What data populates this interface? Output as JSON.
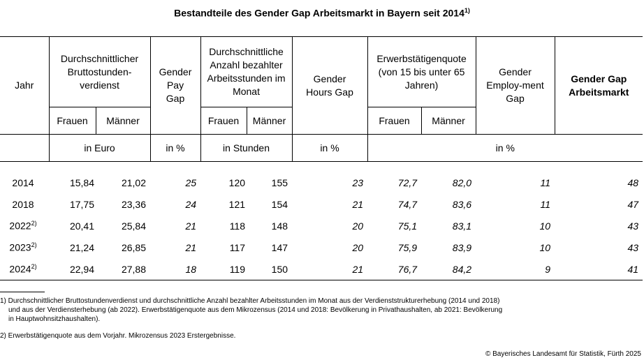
{
  "title": "Bestandteile des Gender Gap Arbeitsmarkt in Bayern seit 2014",
  "title_note": "1)",
  "headers": {
    "jahr": "Jahr",
    "brutto": "Durchschnittlicher Bruttostunden-verdienst",
    "pay_gap": "Gender Pay Gap",
    "stunden": "Durchschnittliche Anzahl bezahlter Arbeitsstunden im Monat",
    "hours_gap": "Gender Hours Gap",
    "quote": "Erwerbstätigenquote (von 15 bis unter 65 Jahren)",
    "employment_gap": "Gender Employ-ment Gap",
    "gap_arbeitsmarkt": "Gender Gap Arbeitsmarkt",
    "frauen": "Frauen",
    "maenner": "Männer"
  },
  "units": {
    "euro": "in Euro",
    "percent": "in %",
    "stunden": "in Stunden"
  },
  "rows": [
    {
      "jahr": "2014",
      "note": "",
      "brutto_f": "15,84",
      "brutto_m": "21,02",
      "pay_gap": "25",
      "std_f": "120",
      "std_m": "155",
      "hours_gap": "23",
      "quote_f": "72,7",
      "quote_m": "82,0",
      "emp_gap": "11",
      "gap": "48"
    },
    {
      "jahr": "2018",
      "note": "",
      "brutto_f": "17,75",
      "brutto_m": "23,36",
      "pay_gap": "24",
      "std_f": "121",
      "std_m": "154",
      "hours_gap": "21",
      "quote_f": "74,7",
      "quote_m": "83,6",
      "emp_gap": "11",
      "gap": "47"
    },
    {
      "jahr": "2022",
      "note": "2)",
      "brutto_f": "20,41",
      "brutto_m": "25,84",
      "pay_gap": "21",
      "std_f": "118",
      "std_m": "148",
      "hours_gap": "20",
      "quote_f": "75,1",
      "quote_m": "83,1",
      "emp_gap": "10",
      "gap": "43"
    },
    {
      "jahr": "2023",
      "note": "2)",
      "brutto_f": "21,24",
      "brutto_m": "26,85",
      "pay_gap": "21",
      "std_f": "117",
      "std_m": "147",
      "hours_gap": "20",
      "quote_f": "75,9",
      "quote_m": "83,9",
      "emp_gap": "10",
      "gap": "43"
    },
    {
      "jahr": "2024",
      "note": "2)",
      "brutto_f": "22,94",
      "brutto_m": "27,88",
      "pay_gap": "18",
      "std_f": "119",
      "std_m": "150",
      "hours_gap": "21",
      "quote_f": "76,7",
      "quote_m": "84,2",
      "emp_gap": "9",
      "gap": "41"
    }
  ],
  "footnotes": {
    "fn1_line1": "1) Durchschnittlicher Bruttostundenverdienst und durchschnittliche Anzahl bezahlter Arbeitsstunden im Monat aus der Verdienststrukturerhebung (2014 und 2018)",
    "fn1_line2": "und aus der Verdiensterhebung (ab 2022). Erwerbstätigenquote aus dem Mikrozensus (2014 und 2018: Bevölkerung in Privathaushalten, ab 2021: Bevölkerung",
    "fn1_line3": "in Hauptwohnsitzhaushalten).",
    "fn2": "2) Erwerbstätigenquote aus dem Vorjahr. Mikrozensus 2023 Erstergebnisse."
  },
  "credit": "© Bayerisches Landesamt für Statistik, Fürth 2025"
}
